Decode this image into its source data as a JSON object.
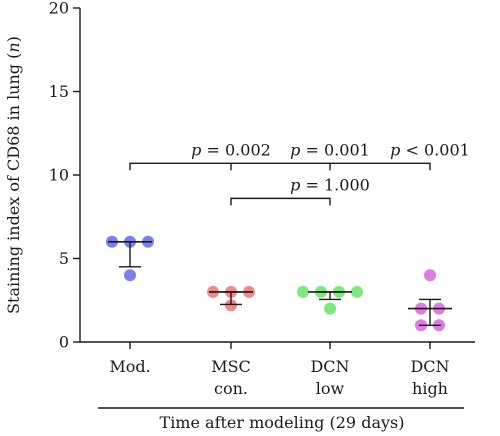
{
  "chart_data": {
    "type": "scatter",
    "ylabel_prefix": "Staining index of CD68 in lung (",
    "ylabel_italic": "n",
    "ylabel_suffix": ")",
    "ylim": [
      0,
      20
    ],
    "yticks": [
      0,
      5,
      10,
      15,
      20
    ],
    "xlabel": "Time after modeling (29 days)",
    "categories": [
      {
        "lines": [
          "Mod."
        ],
        "color": "#7b7ff0",
        "points": [
          6,
          6,
          6,
          4
        ],
        "mean": 6.0,
        "sd_low": 4.5,
        "sd_high": 6.0
      },
      {
        "lines": [
          "MSC",
          "con."
        ],
        "color": "#f08a8a",
        "points": [
          3,
          3,
          3,
          2.2
        ],
        "mean": 3.0,
        "sd_low": 2.25,
        "sd_high": 3.0
      },
      {
        "lines": [
          "DCN",
          "low"
        ],
        "color": "#7de87d",
        "points": [
          3,
          3,
          3,
          3,
          2
        ],
        "mean": 3.0,
        "sd_low": 2.55,
        "sd_high": 3.0
      },
      {
        "lines": [
          "DCN",
          "high"
        ],
        "color": "#e07ae6",
        "points": [
          4,
          2,
          2,
          1,
          1
        ],
        "mean": 2.0,
        "sd_low": 1.0,
        "sd_high": 2.55
      }
    ],
    "comparisons": [
      {
        "from": 0,
        "to": 3,
        "y": 10.7,
        "labels": [
          {
            "at": 1,
            "p": "p",
            "rest": " = 0.002"
          },
          {
            "at": 2,
            "p": "p",
            "rest": " = 0.001"
          },
          {
            "at": 3,
            "p": "p",
            "rest": " < 0.001"
          }
        ]
      },
      {
        "from": 1,
        "to": 2,
        "y": 8.6,
        "labels": [
          {
            "at": 2,
            "p": "p",
            "rest": " = 1.000"
          }
        ]
      }
    ]
  }
}
